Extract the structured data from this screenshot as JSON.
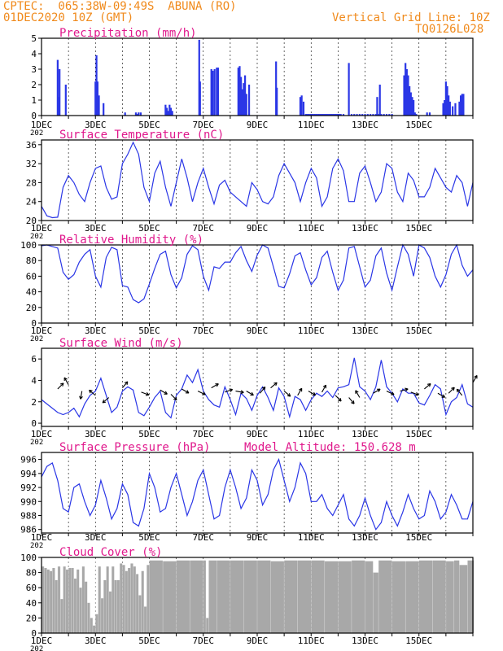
{
  "header": {
    "line1": "CPTEC:  065:38W-09:49S  ABUNA (RO)",
    "line2": "01DEC2020 10Z (GMT)",
    "right1": "Vertical Grid Line: 10Z",
    "right2": "TQ0126L028"
  },
  "colors": {
    "header": "#f08a1c",
    "title": "#e0188c",
    "series": "#2a36e6",
    "cloud": "#a8a8a8",
    "frame": "#000000"
  },
  "x_ticks": [
    "1DEC",
    "3DEC",
    "5DEC",
    "7DEC",
    "9DEC",
    "11DEC",
    "13DEC",
    "15DEC"
  ],
  "year_stub": "202",
  "chart_data": [
    {
      "id": "precip",
      "type": "bar",
      "title": "Precipitation (mm/h)",
      "ylim": [
        0,
        5
      ],
      "yticks": [
        0,
        1,
        2,
        3,
        4,
        5
      ],
      "x": [
        0.6,
        0.63,
        0.67,
        0.9,
        2.0,
        2.04,
        2.08,
        2.13,
        2.3,
        3.1,
        3.5,
        3.55,
        3.6,
        3.68,
        4.6,
        4.65,
        4.7,
        4.75,
        4.8,
        4.85,
        5.85,
        5.88,
        6.3,
        6.35,
        6.42,
        6.5,
        6.55,
        7.3,
        7.35,
        7.4,
        7.45,
        7.5,
        7.55,
        7.6,
        7.7,
        8.7,
        8.73,
        9.6,
        9.65,
        9.72,
        9.8,
        9.85,
        9.9,
        9.95,
        10.0,
        10.05,
        10.1,
        10.15,
        10.2,
        10.25,
        10.3,
        10.35,
        10.4,
        10.45,
        10.5,
        10.55,
        10.6,
        10.65,
        10.7,
        10.75,
        10.8,
        10.85,
        10.9,
        10.95,
        11.0,
        11.05,
        11.1,
        11.2,
        11.4,
        11.5,
        11.6,
        11.7,
        11.8,
        11.9,
        12.0,
        12.1,
        12.2,
        12.3,
        12.4,
        12.5,
        12.6,
        12.7,
        12.8,
        12.9,
        13.0,
        12.45,
        12.55,
        13.45,
        13.5,
        13.55,
        13.6,
        13.65,
        13.7,
        13.75,
        13.8,
        13.85,
        13.9,
        14.3,
        14.4,
        14.9,
        14.95,
        15.0,
        15.05,
        15.1,
        15.15,
        15.25,
        15.35,
        15.5,
        15.55,
        15.6,
        15.65
      ],
      "values": [
        3.6,
        1.2,
        3.0,
        2.0,
        2.2,
        3.9,
        2.2,
        1.3,
        0.8,
        0.2,
        0.2,
        0.1,
        0.2,
        0.2,
        0.7,
        0.5,
        0.3,
        0.7,
        0.5,
        0.3,
        4.9,
        2.2,
        3.0,
        2.9,
        3.0,
        3.1,
        3.1,
        3.1,
        3.2,
        2.5,
        1.7,
        2.1,
        2.6,
        1.4,
        2.0,
        3.5,
        1.8,
        1.2,
        1.3,
        0.9,
        0.1,
        0.1,
        0.1,
        0.1,
        0.1,
        0.1,
        0.1,
        0.1,
        0.1,
        0.1,
        0.1,
        0.1,
        0.1,
        0.1,
        0.1,
        0.1,
        0.1,
        0.1,
        0.1,
        0.1,
        0.1,
        0.1,
        0.1,
        0.1,
        0.1,
        0.1,
        0.1,
        0.1,
        3.4,
        0.1,
        0.1,
        0.1,
        0.1,
        0.1,
        0.1,
        0.1,
        0.1,
        0.1,
        0.1,
        0.1,
        0.1,
        0.1,
        0.1,
        0.1,
        0.1,
        1.2,
        2.0,
        2.6,
        3.4,
        3.0,
        2.6,
        1.9,
        1.5,
        1.2,
        1.0,
        0.2,
        0.1,
        0.2,
        0.2,
        0.8,
        1.0,
        2.2,
        1.9,
        1.3,
        0.9,
        0.6,
        0.8,
        0.9,
        1.3,
        1.4,
        1.4
      ]
    },
    {
      "id": "temp",
      "type": "line",
      "title": "Surface Temperature (nC)",
      "ylim": [
        20,
        37
      ],
      "yticks": [
        20,
        24,
        28,
        32,
        36
      ],
      "x": [
        0,
        0.2,
        0.4,
        0.6,
        0.8,
        1.0,
        1.2,
        1.4,
        1.6,
        1.8,
        2.0,
        2.2,
        2.4,
        2.6,
        2.8,
        3.0,
        3.2,
        3.4,
        3.6,
        3.8,
        4.0,
        4.2,
        4.4,
        4.6,
        4.8,
        5.0,
        5.2,
        5.4,
        5.6,
        5.8,
        6.0,
        6.2,
        6.4,
        6.6,
        6.8,
        7.0,
        7.2,
        7.4,
        7.6,
        7.8,
        8.0,
        8.2,
        8.4,
        8.6,
        8.8,
        9.0,
        9.2,
        9.4,
        9.6,
        9.8,
        10.0,
        10.2,
        10.4,
        10.6,
        10.8,
        11.0,
        11.2,
        11.4,
        11.6,
        11.8,
        12.0,
        12.2,
        12.4,
        12.6,
        12.8,
        13.0,
        13.2,
        13.4,
        13.6,
        13.8,
        14.0,
        14.2,
        14.4,
        14.6,
        14.8,
        15.0,
        15.2,
        15.4,
        15.6,
        15.8,
        16.0
      ],
      "values": [
        23,
        21,
        20.6,
        20.7,
        27,
        29.5,
        28,
        25.5,
        24,
        28,
        31,
        31.5,
        27,
        24.5,
        25,
        32,
        34,
        36.5,
        34,
        27,
        24,
        30,
        32.5,
        27,
        23,
        28,
        33,
        29,
        24,
        28,
        31,
        27,
        23.5,
        27.5,
        28.5,
        26,
        25,
        24,
        23,
        28,
        26.5,
        24,
        23.5,
        25,
        29.5,
        32,
        30,
        28,
        24,
        28,
        31,
        29,
        23,
        25,
        31,
        33,
        30.5,
        24,
        24,
        30,
        31.5,
        28,
        24,
        26,
        32,
        31,
        26,
        24,
        30,
        28.5,
        25,
        25,
        27,
        31,
        29,
        27,
        26,
        29.5,
        28,
        23,
        28
      ]
    },
    {
      "id": "rh",
      "type": "line",
      "title": "Relative Humidity (%)",
      "ylim": [
        0,
        100
      ],
      "yticks": [
        0,
        20,
        40,
        60,
        80,
        100
      ],
      "x": [
        0,
        0.2,
        0.4,
        0.6,
        0.8,
        1.0,
        1.2,
        1.4,
        1.6,
        1.8,
        2.0,
        2.2,
        2.4,
        2.6,
        2.8,
        3.0,
        3.2,
        3.4,
        3.6,
        3.8,
        4.0,
        4.2,
        4.4,
        4.6,
        4.8,
        5.0,
        5.2,
        5.4,
        5.6,
        5.8,
        6.0,
        6.2,
        6.4,
        6.6,
        6.8,
        7.0,
        7.2,
        7.4,
        7.6,
        7.8,
        8.0,
        8.2,
        8.4,
        8.6,
        8.8,
        9.0,
        9.2,
        9.4,
        9.6,
        9.8,
        10.0,
        10.2,
        10.4,
        10.6,
        10.8,
        11.0,
        11.2,
        11.4,
        11.6,
        11.8,
        12.0,
        12.2,
        12.4,
        12.6,
        12.8,
        13.0,
        13.2,
        13.4,
        13.6,
        13.8,
        14.0,
        14.2,
        14.4,
        14.6,
        14.8,
        15.0,
        15.2,
        15.4,
        15.6,
        15.8,
        16.0
      ],
      "values": [
        99,
        100,
        98,
        96,
        65,
        56,
        62,
        78,
        88,
        94,
        60,
        46,
        84,
        97,
        94,
        48,
        46,
        30,
        26,
        31,
        50,
        70,
        88,
        92,
        62,
        45,
        58,
        88,
        99,
        94,
        60,
        42,
        72,
        70,
        78,
        78,
        90,
        98,
        80,
        66,
        87,
        100,
        96,
        72,
        47,
        45,
        63,
        86,
        90,
        68,
        49,
        58,
        84,
        92,
        65,
        42,
        55,
        96,
        98,
        72,
        46,
        55,
        86,
        96,
        64,
        42,
        72,
        100,
        88,
        60,
        100,
        96,
        84,
        60,
        46,
        62,
        88,
        100,
        74,
        60,
        68
      ]
    },
    {
      "id": "wind",
      "type": "line",
      "title": "Surface Wind (m/s)",
      "ylim": [
        -0.3,
        7
      ],
      "yticks": [
        0,
        2,
        4,
        6
      ],
      "x": [
        0,
        0.2,
        0.4,
        0.6,
        0.8,
        1.0,
        1.2,
        1.4,
        1.6,
        1.8,
        2.0,
        2.2,
        2.4,
        2.6,
        2.8,
        3.0,
        3.2,
        3.4,
        3.6,
        3.8,
        4.0,
        4.2,
        4.4,
        4.6,
        4.8,
        5.0,
        5.2,
        5.4,
        5.6,
        5.8,
        6.0,
        6.2,
        6.4,
        6.6,
        6.8,
        7.0,
        7.2,
        7.4,
        7.6,
        7.8,
        8.0,
        8.2,
        8.4,
        8.6,
        8.8,
        9.0,
        9.2,
        9.4,
        9.6,
        9.8,
        10.0,
        10.2,
        10.4,
        10.6,
        10.8,
        11.0,
        11.2,
        11.4,
        11.6,
        11.8,
        12.0,
        12.2,
        12.4,
        12.6,
        12.8,
        13.0,
        13.2,
        13.4,
        13.6,
        13.8,
        14.0,
        14.2,
        14.4,
        14.6,
        14.8,
        15.0,
        15.2,
        15.4,
        15.6,
        15.8,
        16.0
      ],
      "values": [
        2.2,
        1.8,
        1.4,
        1.0,
        0.8,
        1.0,
        1.4,
        0.6,
        1.8,
        2.6,
        3.0,
        4.2,
        2.6,
        1.0,
        1.5,
        3.0,
        3.4,
        3.1,
        1.0,
        0.7,
        1.5,
        2.4,
        3.0,
        1.0,
        0.5,
        2.6,
        3.2,
        4.5,
        3.8,
        5.0,
        3.0,
        2.2,
        1.7,
        1.5,
        3.4,
        2.2,
        0.8,
        2.8,
        2.3,
        1.2,
        2.6,
        3.4,
        2.4,
        1.2,
        3.3,
        2.5,
        0.6,
        2.5,
        2.2,
        1.2,
        2.2,
        2.8,
        2.5,
        3.0,
        2.4,
        3.3,
        3.4,
        3.6,
        6.1,
        3.4,
        3.0,
        2.2,
        3.4,
        5.9,
        3.4,
        2.8,
        2.0,
        3.2,
        2.8,
        2.8,
        1.9,
        1.7,
        2.6,
        3.6,
        3.2,
        0.8,
        2.0,
        2.4,
        3.6,
        1.8,
        1.5
      ]
    },
    {
      "id": "pres",
      "type": "line",
      "title": "Surface Pressure (hPa)",
      "subtitle": "Model Altitude: 150.628 m",
      "ylim": [
        985.5,
        997
      ],
      "yticks": [
        986,
        988,
        990,
        992,
        994,
        996
      ],
      "x": [
        0,
        0.2,
        0.4,
        0.6,
        0.8,
        1.0,
        1.2,
        1.4,
        1.6,
        1.8,
        2.0,
        2.2,
        2.4,
        2.6,
        2.8,
        3.0,
        3.2,
        3.4,
        3.6,
        3.8,
        4.0,
        4.2,
        4.4,
        4.6,
        4.8,
        5.0,
        5.2,
        5.4,
        5.6,
        5.8,
        6.0,
        6.2,
        6.4,
        6.6,
        6.8,
        7.0,
        7.2,
        7.4,
        7.6,
        7.8,
        8.0,
        8.2,
        8.4,
        8.6,
        8.8,
        9.0,
        9.2,
        9.4,
        9.6,
        9.8,
        10.0,
        10.2,
        10.4,
        10.6,
        10.8,
        11.0,
        11.2,
        11.4,
        11.6,
        11.8,
        12.0,
        12.2,
        12.4,
        12.6,
        12.8,
        13.0,
        13.2,
        13.4,
        13.6,
        13.8,
        14.0,
        14.2,
        14.4,
        14.6,
        14.8,
        15.0,
        15.2,
        15.4,
        15.6,
        15.8,
        16.0
      ],
      "values": [
        993.5,
        995,
        995.5,
        993,
        989,
        988.5,
        992,
        992.5,
        990,
        988,
        989.5,
        993,
        990.5,
        987.5,
        989,
        992.5,
        991,
        987,
        986.5,
        989,
        994,
        992,
        988.5,
        989,
        992,
        994,
        991,
        988,
        990,
        993,
        994.5,
        991,
        987.5,
        988,
        992,
        994.5,
        992,
        989,
        990.5,
        994.5,
        993,
        989.5,
        991,
        994.5,
        996,
        993,
        990,
        992,
        995.5,
        994,
        990,
        990,
        991,
        989,
        988,
        989.5,
        991,
        987.5,
        986.5,
        988,
        990.5,
        988,
        986,
        987,
        990,
        988,
        986.5,
        988.5,
        991,
        989,
        987.5,
        988,
        991.5,
        990,
        987.5,
        988.5,
        991,
        989.5,
        987.5,
        987.5,
        990
      ]
    },
    {
      "id": "cloud",
      "type": "bar",
      "title": "Cloud Cover (%)",
      "ylim": [
        0,
        100
      ],
      "yticks": [
        0,
        20,
        40,
        60,
        80,
        100
      ],
      "x": [
        0,
        0.1,
        0.2,
        0.3,
        0.4,
        0.5,
        0.6,
        0.7,
        0.8,
        0.9,
        1.0,
        1.1,
        1.2,
        1.3,
        1.4,
        1.5,
        1.6,
        1.7,
        1.8,
        1.9,
        2.0,
        2.1,
        2.2,
        2.3,
        2.4,
        2.5,
        2.6,
        2.7,
        2.8,
        2.9,
        3.0,
        3.1,
        3.2,
        3.3,
        3.4,
        3.5,
        3.6,
        3.7,
        3.8,
        3.9,
        4.0,
        4.5,
        5.0,
        5.5,
        6.0,
        6.1,
        6.2,
        6.5,
        7.0,
        7.5,
        8.0,
        8.5,
        9.0,
        9.5,
        10.0,
        10.5,
        11.0,
        11.5,
        12.0,
        12.3,
        12.5,
        13.0,
        13.5,
        14.0,
        14.5,
        15.0,
        15.3,
        15.5,
        15.8,
        16.0
      ],
      "values": [
        88,
        86,
        84,
        82,
        86,
        70,
        88,
        45,
        88,
        84,
        86,
        86,
        72,
        84,
        60,
        88,
        68,
        40,
        20,
        10,
        25,
        88,
        46,
        70,
        88,
        55,
        88,
        70,
        70,
        92,
        90,
        82,
        86,
        92,
        88,
        78,
        50,
        82,
        35,
        90,
        96,
        95,
        96,
        96,
        96,
        20,
        96,
        96,
        96,
        96,
        96,
        95,
        96,
        96,
        96,
        95,
        95,
        96,
        95,
        80,
        96,
        95,
        95,
        96,
        96,
        95,
        96,
        90,
        96,
        96
      ]
    }
  ],
  "wind_arrows": {
    "x": [
      0.6,
      1.0,
      1.5,
      2.0,
      2.5,
      3.0,
      3.7,
      4.4,
      4.8,
      5.2,
      5.8,
      6.3,
      6.8,
      7.2,
      7.6,
      8.1,
      8.5,
      9.0,
      9.5,
      9.9,
      10.4,
      10.9,
      11.4,
      11.8,
      12.3,
      12.8,
      13.3,
      13.7,
      14.2,
      14.7,
      15.1,
      15.6,
      16.0
    ],
    "y": [
      3.2,
      3.6,
      3.0,
      2.6,
      2.4,
      3.3,
      2.9,
      3.1,
      2.7,
      3.2,
      3.0,
      3.3,
      2.9,
      3.0,
      3.0,
      2.8,
      3.3,
      3.0,
      2.6,
      3.0,
      2.9,
      2.6,
      2.4,
      2.4,
      2.8,
      3.0,
      3.0,
      2.9,
      3.2,
      2.8,
      2.8,
      2.6,
      3.8
    ],
    "angle": [
      -45,
      -120,
      100,
      -140,
      140,
      -50,
      20,
      30,
      45,
      30,
      25,
      -30,
      -20,
      10,
      30,
      -50,
      -40,
      40,
      -60,
      30,
      -60,
      45,
      50,
      -120,
      -30,
      25,
      -15,
      20,
      -40,
      30,
      -45,
      -130,
      -60
    ]
  }
}
